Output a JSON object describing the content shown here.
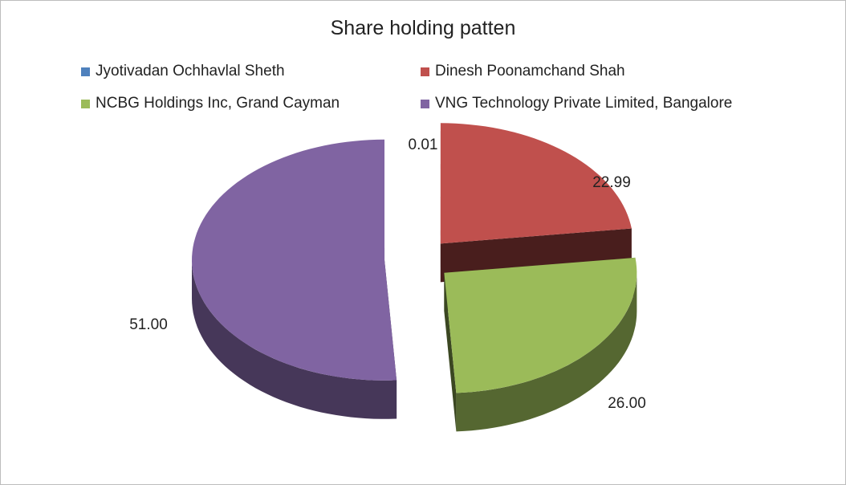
{
  "chart_data": {
    "type": "pie",
    "title": "Share holding patten",
    "legend_position": "top",
    "slices": [
      {
        "name": "Jyotivadan Ochhavlal Sheth",
        "value": 0.01,
        "label": "0.01",
        "color": "#4f81bd"
      },
      {
        "name": "Dinesh Poonamchand Shah",
        "value": 22.99,
        "label": "22.99",
        "color": "#c0504d"
      },
      {
        "name": "NCBG Holdings Inc, Grand Cayman",
        "value": 26.0,
        "label": "26.00",
        "color": "#9bbb59"
      },
      {
        "name": "VNG Technology Private Limited, Bangalore",
        "value": 51.0,
        "label": "51.00",
        "color": "#8064a2"
      }
    ]
  }
}
